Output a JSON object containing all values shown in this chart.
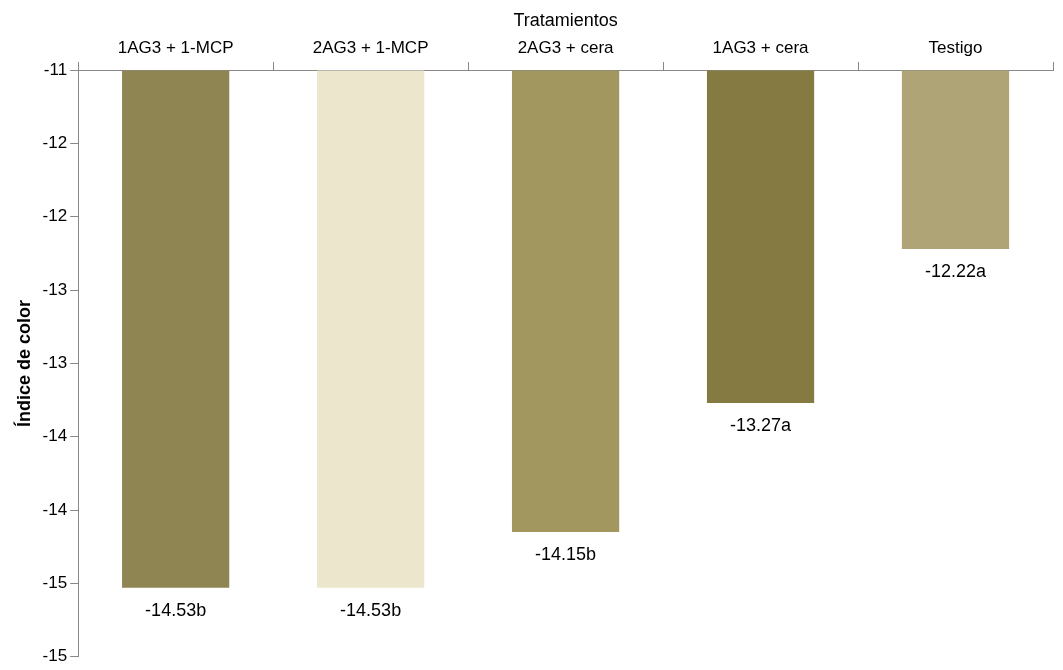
{
  "chart_data": {
    "type": "bar",
    "xlabel": "Tratamientos",
    "ylabel": "Índice de color",
    "categories": [
      "1AG3 + 1-MCP",
      "2AG3 + 1-MCP",
      "2AG3 + cera",
      "1AG3 + cera",
      "Testigo"
    ],
    "values": [
      -14.53,
      -14.53,
      -14.15,
      -13.27,
      -12.22
    ],
    "colors": [
      "#8f8552",
      "#ece6cc",
      "#a1975f",
      "#857a42",
      "#aea476"
    ],
    "value_labels": [
      "-14.53b",
      "-14.53b",
      "-14.15b",
      "-13.27a",
      "-12.22a"
    ],
    "ylim": [
      -15,
      -11
    ],
    "yticks": [
      -11,
      {
        "value": -11.5,
        "label": "-12"
      },
      -12,
      {
        "value": -12.5,
        "label": "-13"
      },
      -13,
      {
        "value": -13.5,
        "label": "-14"
      },
      -14,
      {
        "value": -14.5,
        "label": "-15"
      },
      -15
    ],
    "grid": false,
    "legend": false
  }
}
